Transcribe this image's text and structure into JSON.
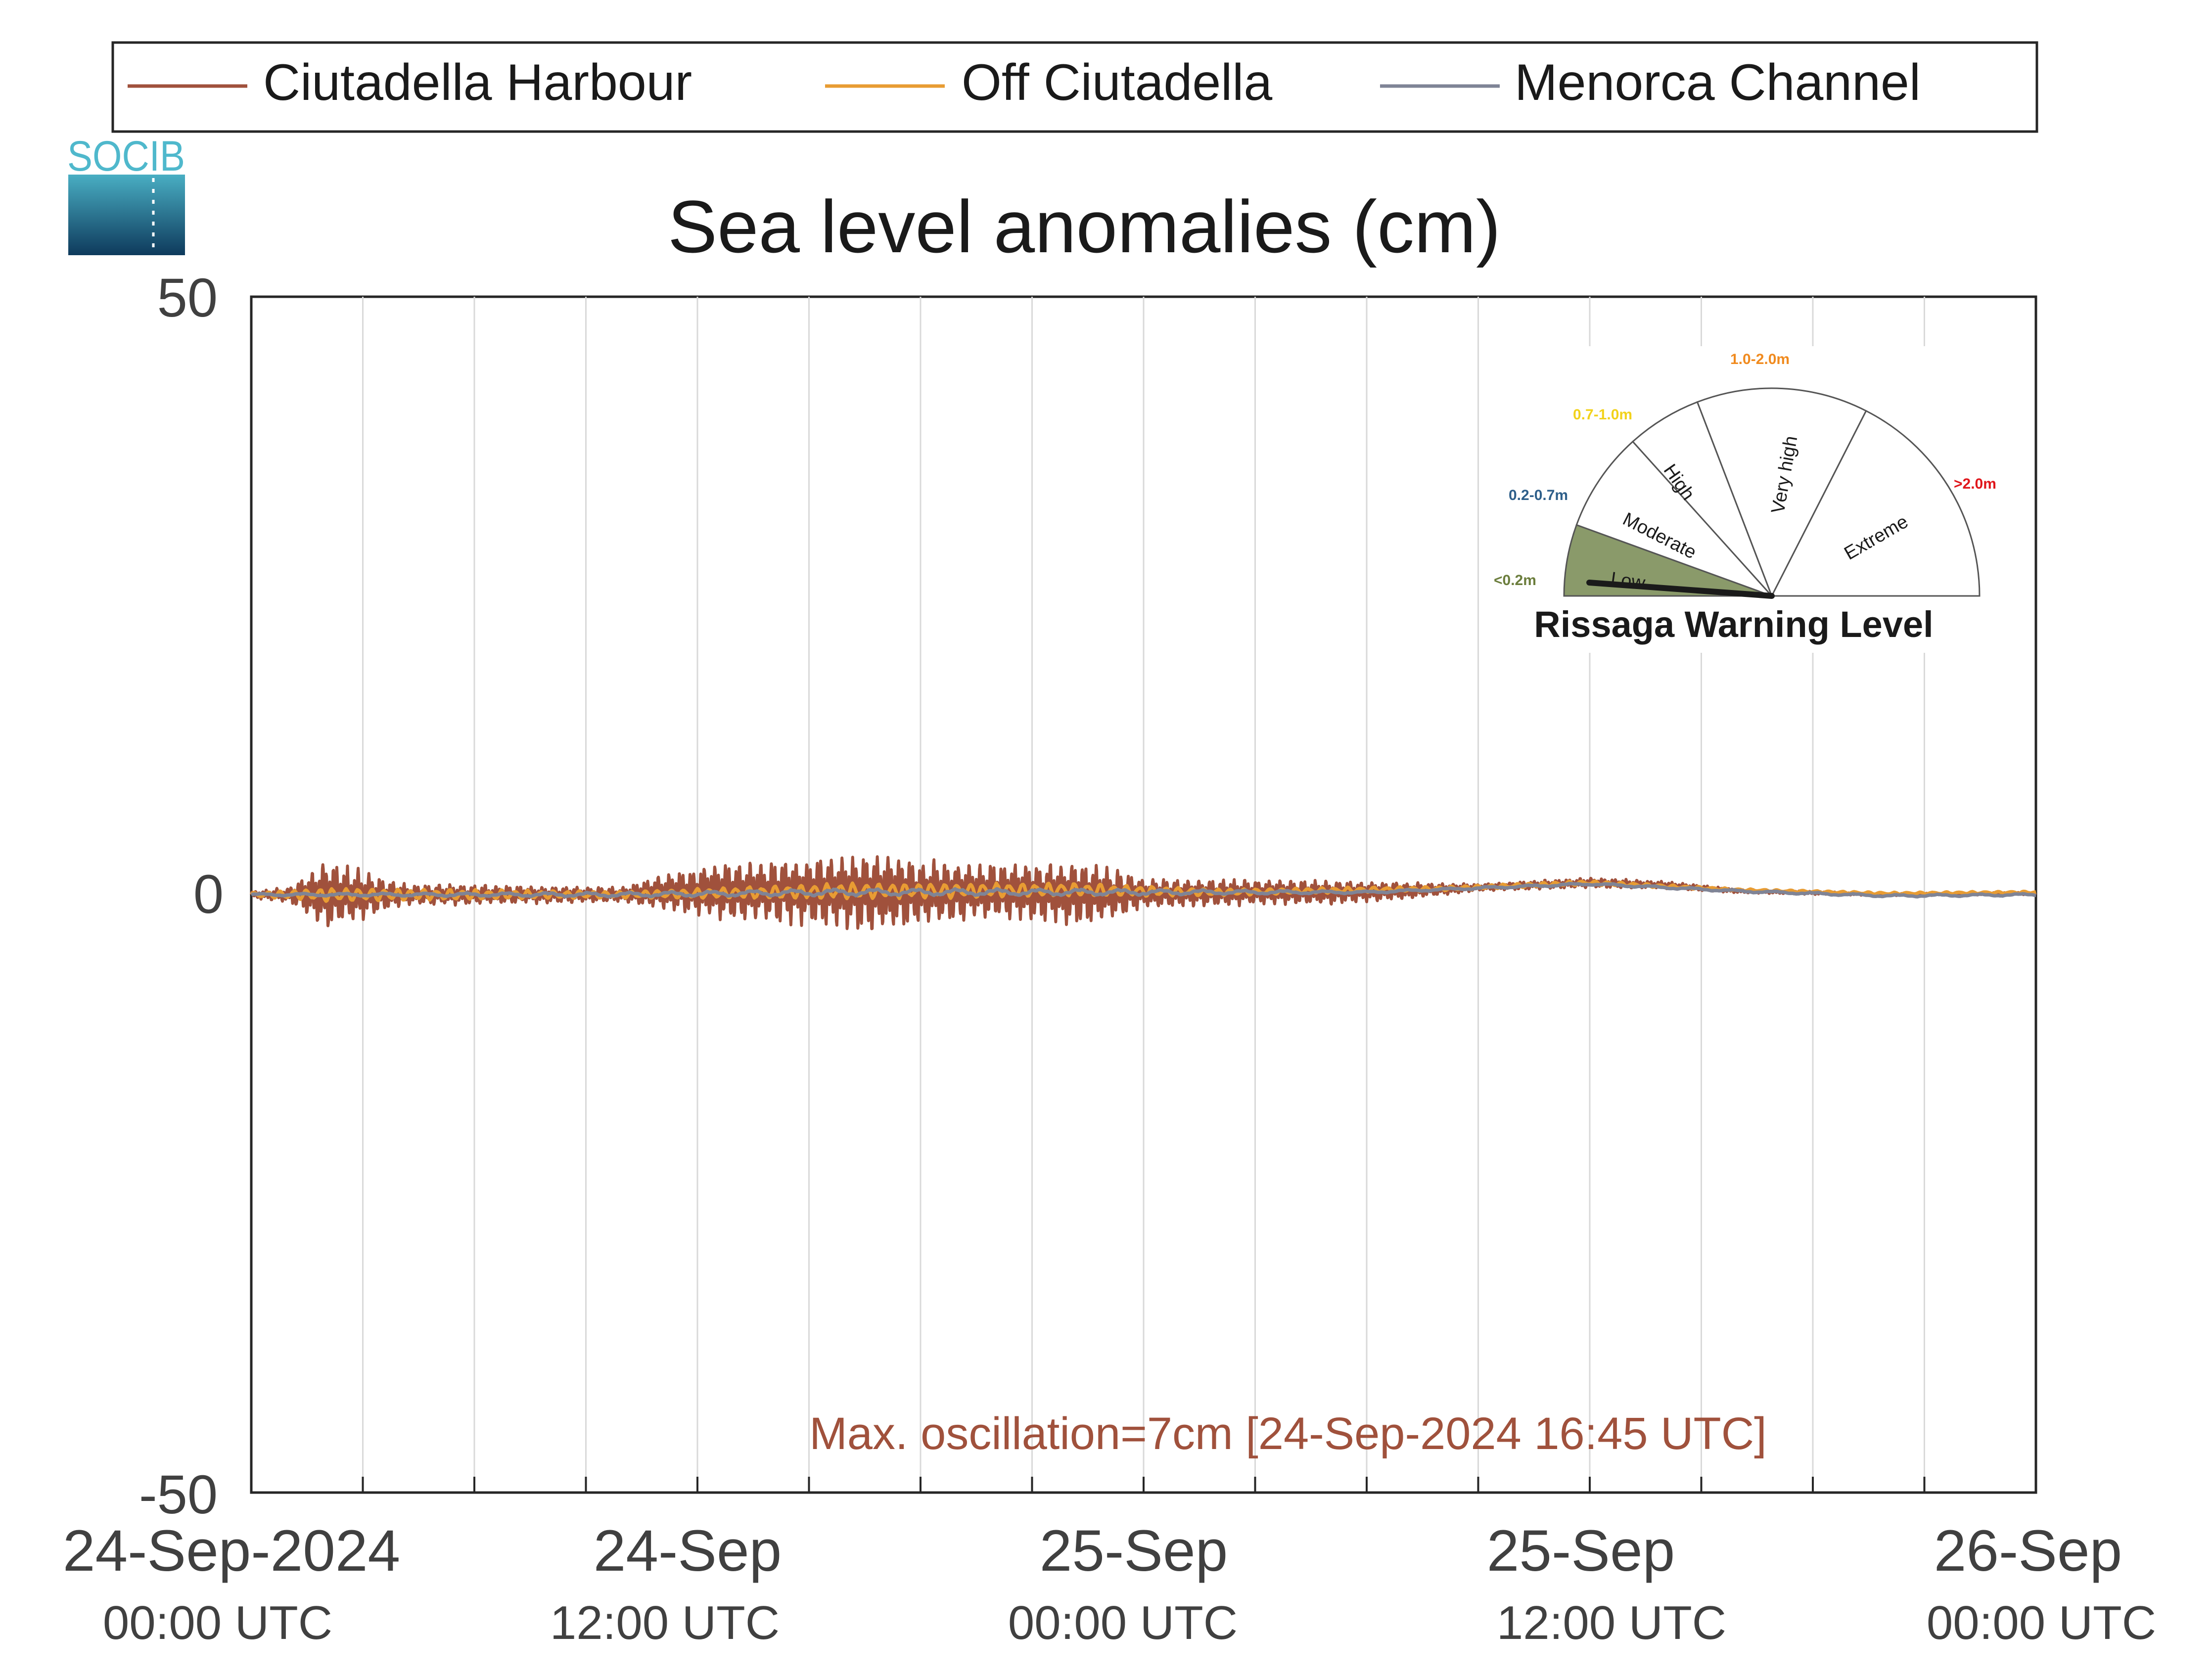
{
  "chart_data": {
    "type": "line",
    "title": "Sea level anomalies (cm)",
    "xlabel": "",
    "ylabel": "",
    "ylim": [
      -50,
      50
    ],
    "yticks": [
      "50",
      "0",
      "-50"
    ],
    "xlim_hours": [
      0,
      48
    ],
    "xtick_labels": [
      {
        "date": "24-Sep-2024",
        "time": "00:00 UTC"
      },
      {
        "date": "24-Sep",
        "time": "12:00 UTC"
      },
      {
        "date": "25-Sep",
        "time": "00:00 UTC"
      },
      {
        "date": "25-Sep",
        "time": "12:00 UTC"
      },
      {
        "date": "26-Sep",
        "time": "00:00 UTC"
      }
    ],
    "grid": "vertical lines every 3 hours",
    "legend_position": "top",
    "series": [
      {
        "name": "Ciutadella Harbour",
        "color": "#a0513c",
        "envelope": [
          {
            "t": 0,
            "amp": 0.3,
            "mean": 0
          },
          {
            "t": 1,
            "amp": 0.6,
            "mean": 0
          },
          {
            "t": 2,
            "amp": 2.8,
            "mean": 0
          },
          {
            "t": 3,
            "amp": 2.0,
            "mean": 0
          },
          {
            "t": 4,
            "amp": 0.9,
            "mean": 0
          },
          {
            "t": 6,
            "amp": 0.8,
            "mean": 0
          },
          {
            "t": 8,
            "amp": 0.7,
            "mean": 0
          },
          {
            "t": 10,
            "amp": 0.6,
            "mean": 0
          },
          {
            "t": 11,
            "amp": 1.4,
            "mean": 0.2
          },
          {
            "t": 12.5,
            "amp": 2.3,
            "mean": 0.3
          },
          {
            "t": 14,
            "amp": 2.5,
            "mean": 0.3
          },
          {
            "t": 16.75,
            "amp": 3.3,
            "mean": 0.2
          },
          {
            "t": 18,
            "amp": 2.6,
            "mean": 0.2
          },
          {
            "t": 20,
            "amp": 2.2,
            "mean": 0.3
          },
          {
            "t": 22.5,
            "amp": 2.6,
            "mean": 0.1
          },
          {
            "t": 24,
            "amp": 1.2,
            "mean": 0.1
          },
          {
            "t": 27,
            "amp": 1.0,
            "mean": 0.2
          },
          {
            "t": 29,
            "amp": 1.0,
            "mean": 0.2
          },
          {
            "t": 31,
            "amp": 0.7,
            "mean": 0.3
          },
          {
            "t": 33,
            "amp": 0.3,
            "mean": 0.6
          },
          {
            "t": 36,
            "amp": 0.4,
            "mean": 1.0
          },
          {
            "t": 38,
            "amp": 0.3,
            "mean": 0.8
          },
          {
            "t": 40,
            "amp": 0.15,
            "mean": 0.3
          },
          {
            "t": 44,
            "amp": 0.1,
            "mean": 0.0
          },
          {
            "t": 48,
            "amp": 0.1,
            "mean": 0.1
          }
        ]
      },
      {
        "name": "Off Ciutadella",
        "color": "#e89c33",
        "envelope": [
          {
            "t": 0,
            "amp": 0.2,
            "mean": 0
          },
          {
            "t": 2,
            "amp": 0.6,
            "mean": 0
          },
          {
            "t": 10,
            "amp": 0.3,
            "mean": 0
          },
          {
            "t": 16,
            "amp": 0.7,
            "mean": 0.3
          },
          {
            "t": 22,
            "amp": 0.6,
            "mean": 0.4
          },
          {
            "t": 26,
            "amp": 0.3,
            "mean": 0.2
          },
          {
            "t": 32,
            "amp": 0.2,
            "mean": 0.5
          },
          {
            "t": 36,
            "amp": 0.2,
            "mean": 1.0
          },
          {
            "t": 40,
            "amp": 0.1,
            "mean": 0.4
          },
          {
            "t": 44,
            "amp": 0.1,
            "mean": 0.1
          },
          {
            "t": 48,
            "amp": 0.1,
            "mean": 0.2
          }
        ]
      },
      {
        "name": "Menorca Channel",
        "color": "#7f8496",
        "envelope": [
          {
            "t": 0,
            "amp": 0.1,
            "mean": 0
          },
          {
            "t": 10,
            "amp": 0.2,
            "mean": 0
          },
          {
            "t": 16,
            "amp": 0.3,
            "mean": 0.2
          },
          {
            "t": 22,
            "amp": 0.3,
            "mean": 0.2
          },
          {
            "t": 30,
            "amp": 0.1,
            "mean": 0.2
          },
          {
            "t": 36,
            "amp": 0.1,
            "mean": 0.9
          },
          {
            "t": 40,
            "amp": 0.1,
            "mean": 0.3
          },
          {
            "t": 44,
            "amp": 0.1,
            "mean": -0.1
          },
          {
            "t": 48,
            "amp": 0.1,
            "mean": 0.0
          }
        ]
      }
    ],
    "annotation": {
      "text": "Max. oscillation=7cm [24-Sep-2024 16:45 UTC]",
      "color": "#a0513c"
    }
  },
  "logo": {
    "text": "SOCIB"
  },
  "gauge": {
    "title": "Rissaga Warning Level",
    "needle_level": "Low",
    "levels": [
      {
        "name": "Low",
        "range": "<0.2m",
        "color": "#6b7d3c"
      },
      {
        "name": "Moderate",
        "range": "0.2-0.7m",
        "color": "#2e5f8a"
      },
      {
        "name": "High",
        "range": "0.7-1.0m",
        "color": "#f2d21c"
      },
      {
        "name": "Very high",
        "range": "1.0-2.0m",
        "color": "#f08a1e"
      },
      {
        "name": "Extreme",
        "range": ">2.0m",
        "color": "#e0161b"
      }
    ],
    "low_fill": "#8a9a6a"
  }
}
